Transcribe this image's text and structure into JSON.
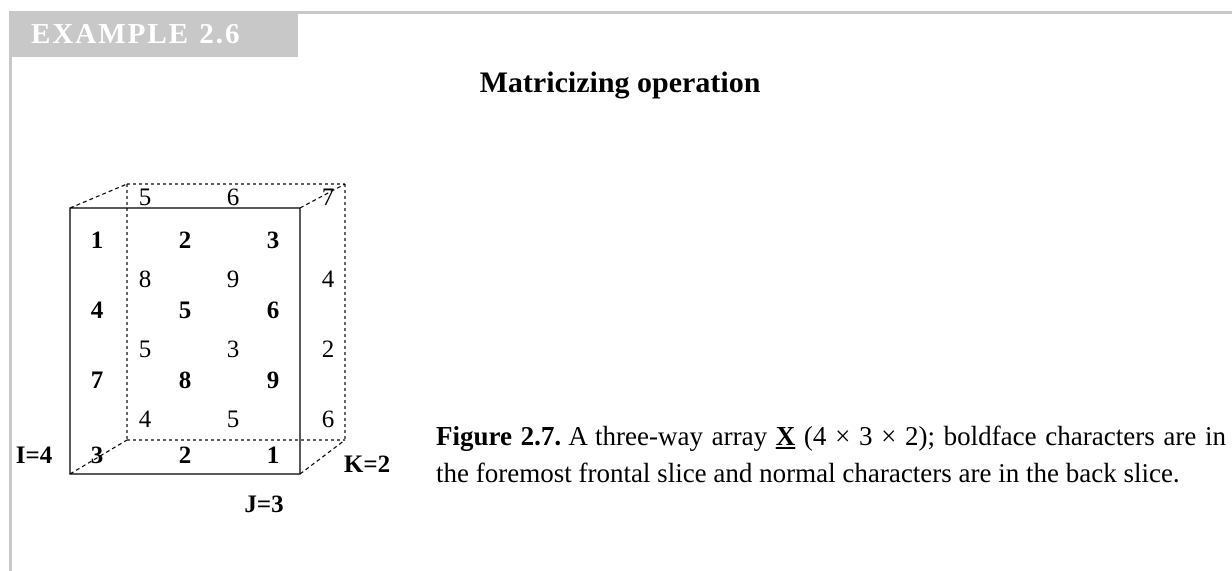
{
  "header": {
    "example_label": "EXAMPLE 2.6",
    "title": "Matricizing operation"
  },
  "figure": {
    "front_slice": [
      [
        "1",
        "2",
        "3"
      ],
      [
        "4",
        "5",
        "6"
      ],
      [
        "7",
        "8",
        "9"
      ],
      [
        "3",
        "2",
        "1"
      ]
    ],
    "back_slice": [
      [
        "5",
        "6",
        "7"
      ],
      [
        "8",
        "9",
        "4"
      ],
      [
        "5",
        "3",
        "2"
      ],
      [
        "4",
        "5",
        "6"
      ]
    ],
    "dim_labels": {
      "i": "I=4",
      "j": "J=3",
      "k": "K=2"
    }
  },
  "caption": {
    "label": "Figure 2.7.",
    "text_before": "A three-way array",
    "variable": "X",
    "text_after": "(4 × 3 × 2); boldface characters are in the foremost frontal slice and normal characters are in the back slice."
  }
}
